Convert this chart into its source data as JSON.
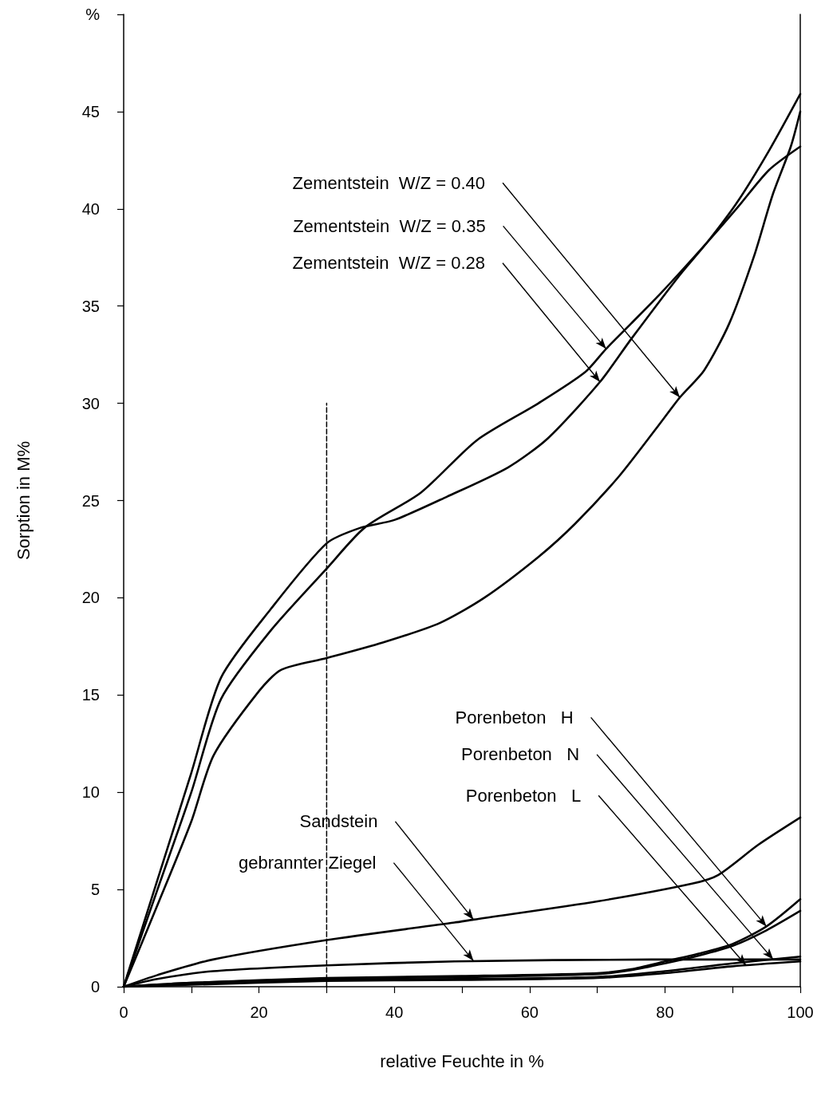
{
  "chart_data": {
    "type": "line",
    "xlabel": "relative Feuchte in %",
    "ylabel": "Sorption in M%",
    "xlim": [
      0,
      100
    ],
    "ylim": [
      0,
      50
    ],
    "xticks": [
      0,
      {
        "value": 10,
        "label": null
      },
      20,
      {
        "value": 30,
        "label": null
      },
      40,
      {
        "value": 50,
        "label": null
      },
      60,
      {
        "value": 70,
        "label": null
      },
      80,
      {
        "value": 90,
        "label": null
      },
      100
    ],
    "yticks": [
      0,
      5,
      10,
      15,
      20,
      25,
      30,
      35,
      40,
      45,
      {
        "value": 50,
        "label": "%"
      }
    ],
    "grid": false,
    "marker": "none",
    "line_style": "solid",
    "series": [
      {
        "color": "#000000",
        "x": [
          0,
          5,
          10,
          13.3,
          20,
          23.3,
          30,
          38.3,
          46.7,
          53.3,
          61.3,
          66.7,
          73.1,
          78.7,
          82.2,
          85.8,
          89.5,
          93.2,
          95.9,
          98.6,
          100
        ],
        "values": [
          0,
          4.2,
          8.5,
          11.9,
          15.2,
          16.3,
          16.9,
          17.7,
          18.7,
          20,
          22.1,
          23.8,
          26.2,
          28.7,
          30.3,
          31.7,
          34.1,
          37.6,
          40.7,
          43.2,
          45
        ]
      },
      {
        "color": "#000000",
        "x": [
          0,
          5,
          10,
          14.4,
          21.7,
          30,
          35.6,
          43.9,
          52.2,
          61.3,
          68.2,
          71.3,
          75,
          79.5,
          86.3,
          90.8,
          95.4,
          100
        ],
        "values": [
          0,
          5,
          10,
          14.8,
          18.3,
          21.5,
          23.6,
          25.4,
          28.1,
          30,
          31.6,
          32.8,
          34.1,
          35.7,
          38.3,
          40.1,
          42,
          43.2
        ]
      },
      {
        "color": "#000000",
        "x": [
          0,
          5,
          10,
          14.4,
          21.7,
          30,
          35,
          40,
          47.8,
          56.8,
          62.7,
          70.4,
          75,
          82.2,
          86.3,
          90.8,
          95.4,
          100
        ],
        "values": [
          0,
          5.5,
          11,
          15.9,
          19.4,
          22.8,
          23.6,
          24,
          25.2,
          26.7,
          28.2,
          31.1,
          33.3,
          36.6,
          38.3,
          40.4,
          43,
          45.9
        ]
      },
      {
        "color": "#000000",
        "x": [
          0,
          10,
          30,
          50,
          70,
          75,
          80,
          85,
          90,
          95,
          100
        ],
        "values": [
          0,
          0.2,
          0.45,
          0.55,
          0.7,
          0.9,
          1.3,
          1.7,
          2.2,
          3.1,
          4.5
        ]
      },
      {
        "color": "#000000",
        "x": [
          0,
          10,
          30,
          50,
          70,
          75,
          80,
          85,
          90,
          95,
          100
        ],
        "values": [
          0,
          0.2,
          0.4,
          0.5,
          0.65,
          0.85,
          1.2,
          1.6,
          2.1,
          2.9,
          3.9
        ]
      },
      {
        "color": "#000000",
        "x": [
          0,
          10,
          30,
          50,
          70,
          80,
          90,
          100
        ],
        "values": [
          0,
          0.15,
          0.35,
          0.4,
          0.5,
          0.8,
          1.2,
          1.55
        ]
      },
      {
        "color": "#000000",
        "x": [
          0,
          10,
          30,
          50,
          70,
          80,
          90,
          100
        ],
        "values": [
          0,
          0.1,
          0.3,
          0.35,
          0.45,
          0.7,
          1.05,
          1.3
        ]
      },
      {
        "color": "#000000",
        "x": [
          0,
          5,
          13.2,
          30,
          48.9,
          51.7,
          70.2,
          84,
          87.9,
          93.8,
          100
        ],
        "values": [
          0,
          0.6,
          1.4,
          2.4,
          3.3,
          3.45,
          4.4,
          5.3,
          5.75,
          7.3,
          8.7
        ]
      },
      {
        "color": "#000000",
        "x": [
          0,
          5,
          13.2,
          30,
          48.9,
          78,
          100
        ],
        "values": [
          0,
          0.4,
          0.8,
          1.1,
          1.3,
          1.4,
          1.4
        ]
      },
      {
        "color": "#000000",
        "line_style": "dashed",
        "x": [
          30,
          30
        ],
        "values": [
          0,
          30
        ]
      }
    ],
    "annotations": [
      {
        "text": "Zementstein  W/Z = 0.40",
        "x": 82.2,
        "y": 30.3
      },
      {
        "text": "Zementstein  W/Z = 0.35",
        "x": 71.3,
        "y": 32.8
      },
      {
        "text": "Zementstein  W/Z = 0.28",
        "x": 70.4,
        "y": 31.1
      },
      {
        "text": "Porenbeton   H",
        "x": 95,
        "y": 3.1
      },
      {
        "text": "Porenbeton   N",
        "x": 96,
        "y": 1.4
      },
      {
        "text": "Porenbeton   L",
        "x": 92,
        "y": 1.1
      },
      {
        "text": "Sandstein",
        "x": 51.7,
        "y": 3.45
      },
      {
        "text": "gebrannter Ziegel",
        "x": 51.7,
        "y": 1.33
      }
    ]
  }
}
